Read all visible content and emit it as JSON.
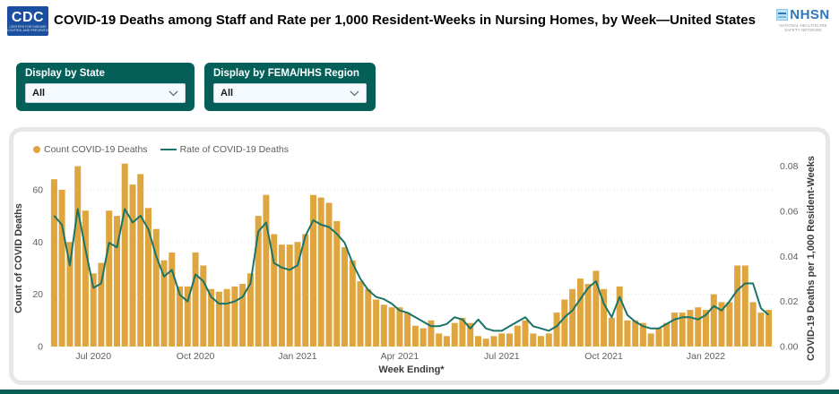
{
  "header": {
    "cdc_logo_text": "CDC",
    "cdc_logo_subtext1": "CENTERS FOR DISEASE",
    "cdc_logo_subtext2": "CONTROL AND PREVENTION",
    "title": "COVID-19 Deaths among Staff and Rate per 1,000 Resident-Weeks in Nursing Homes, by Week—United States",
    "nhsn_logo_text": "NHSN",
    "nhsn_logo_subtext": "NATIONAL HEALTHCARE SAFETY NETWORK"
  },
  "filters": [
    {
      "label": "Display by State",
      "value": "All"
    },
    {
      "label": "Display by FEMA/HHS Region",
      "value": "All"
    }
  ],
  "colors": {
    "bar": "#dfa63f",
    "line": "#1a7468",
    "panel_teal": "#045f59",
    "bottom_bar_teal": "#0a5f56",
    "axis_text": "#605e5c",
    "grid": "#e2e2e2",
    "cdc_blue": "#1a4e9e",
    "nhsn_blue": "#2e77bb"
  },
  "chart_data": {
    "type": "bar",
    "title": "",
    "xlabel": "Week Ending*",
    "x_ticks": [
      {
        "index": 5,
        "label": "Jul 2020"
      },
      {
        "index": 18,
        "label": "Oct 2020"
      },
      {
        "index": 31,
        "label": "Jan 2021"
      },
      {
        "index": 44,
        "label": "Apr 2021"
      },
      {
        "index": 57,
        "label": "Jul 2021"
      },
      {
        "index": 70,
        "label": "Oct 2021"
      },
      {
        "index": 83,
        "label": "Jan 2022"
      }
    ],
    "left_axis": {
      "title": "Count of COVID Deaths",
      "ticks": [
        0,
        20,
        40,
        60
      ],
      "max": 67.5
    },
    "right_axis": {
      "title": "COVID-19 Deaths per 1,000 Resident-Weeks",
      "ticks": [
        "0.00",
        "0.02",
        "0.04",
        "0.06",
        "0.08"
      ],
      "max": 0.08
    },
    "legend": [
      "Count COVID-19 Deaths",
      "Rate of COVID-19 Deaths"
    ],
    "grid": "dotted, at left-axis ticks",
    "legend_position": "top-left",
    "series": [
      {
        "name": "Count COVID-19 Deaths",
        "type": "bar",
        "axis": "left",
        "values": [
          64,
          60,
          40,
          69,
          52,
          28,
          32,
          52,
          50,
          70,
          62,
          66,
          53,
          45,
          33,
          36,
          23,
          23,
          36,
          31,
          22,
          21,
          22,
          23,
          24,
          28,
          50,
          58,
          43,
          39,
          39,
          40,
          43,
          58,
          57,
          55,
          48,
          38,
          33,
          25,
          22,
          18,
          16,
          15,
          15,
          13,
          8,
          7,
          10,
          5,
          4,
          9,
          11,
          9,
          4,
          3,
          4,
          5,
          5,
          8,
          10,
          5,
          4,
          5,
          13,
          18,
          22,
          26,
          24,
          29,
          22,
          11,
          23,
          10,
          10,
          9,
          5,
          7,
          9,
          13,
          13,
          14,
          15,
          14,
          20,
          17,
          17,
          31,
          31,
          17,
          13,
          14
        ]
      },
      {
        "name": "Rate of COVID-19 Deaths",
        "type": "line",
        "axis": "right",
        "values": [
          0.058,
          0.054,
          0.036,
          0.061,
          0.043,
          0.026,
          0.028,
          0.046,
          0.044,
          0.061,
          0.055,
          0.058,
          0.052,
          0.04,
          0.031,
          0.034,
          0.023,
          0.02,
          0.032,
          0.029,
          0.022,
          0.019,
          0.019,
          0.02,
          0.022,
          0.028,
          0.051,
          0.055,
          0.037,
          0.035,
          0.034,
          0.036,
          0.049,
          0.056,
          0.054,
          0.053,
          0.05,
          0.046,
          0.037,
          0.03,
          0.025,
          0.022,
          0.021,
          0.019,
          0.016,
          0.015,
          0.013,
          0.011,
          0.009,
          0.009,
          0.01,
          0.013,
          0.012,
          0.008,
          0.012,
          0.008,
          0.007,
          0.007,
          0.009,
          0.011,
          0.013,
          0.009,
          0.008,
          0.007,
          0.009,
          0.013,
          0.016,
          0.021,
          0.026,
          0.029,
          0.019,
          0.013,
          0.022,
          0.014,
          0.011,
          0.009,
          0.008,
          0.008,
          0.01,
          0.012,
          0.013,
          0.013,
          0.012,
          0.014,
          0.018,
          0.016,
          0.02,
          0.025,
          0.028,
          0.028,
          0.017,
          0.014
        ]
      }
    ]
  }
}
